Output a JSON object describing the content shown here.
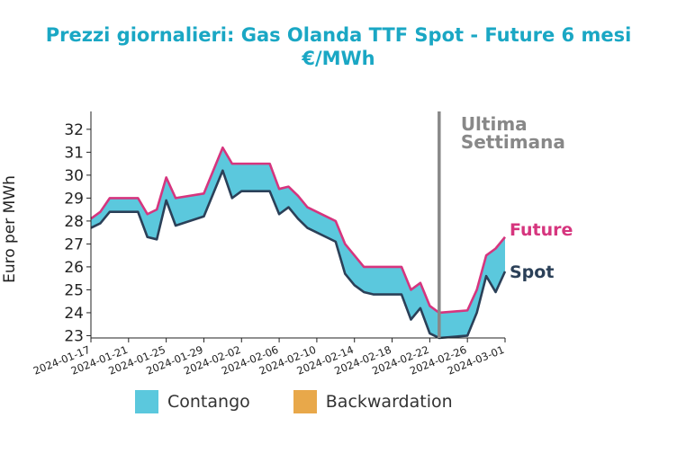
{
  "title_line1": "Prezzi giornalieri: Gas Olanda TTF Spot - Future 6 mesi",
  "title_line2": "€/MWh",
  "colors": {
    "contango": "#5bc8dd",
    "backwardation": "#e8a84a",
    "future": "#d6357e",
    "spot": "#2b4058",
    "marker": "#888888",
    "title": "#1aa7c4"
  },
  "legend": {
    "contango": "Contango",
    "backwardation": "Backwardation"
  },
  "chart_data": {
    "type": "area",
    "ylabel": "Euro per MWh",
    "xlabel": "",
    "ylim": [
      22.9,
      32.7
    ],
    "yticks": [
      23,
      24,
      25,
      26,
      27,
      28,
      29,
      30,
      31,
      32
    ],
    "xticks": [
      "2024-01-17",
      "2024-01-21",
      "2024-01-25",
      "2024-01-29",
      "2024-02-02",
      "2024-02-06",
      "2024-02-10",
      "2024-02-14",
      "2024-02-18",
      "2024-02-22",
      "2024-02-26",
      "2024-03-01"
    ],
    "x": [
      "2024-01-17",
      "2024-01-18",
      "2024-01-19",
      "2024-01-22",
      "2024-01-23",
      "2024-01-24",
      "2024-01-25",
      "2024-01-26",
      "2024-01-29",
      "2024-01-30",
      "2024-01-31",
      "2024-02-01",
      "2024-02-02",
      "2024-02-05",
      "2024-02-06",
      "2024-02-07",
      "2024-02-08",
      "2024-02-09",
      "2024-02-12",
      "2024-02-13",
      "2024-02-14",
      "2024-02-15",
      "2024-02-16",
      "2024-02-19",
      "2024-02-20",
      "2024-02-21",
      "2024-02-22",
      "2024-02-23",
      "2024-02-26",
      "2024-02-27",
      "2024-02-28",
      "2024-02-29",
      "2024-03-01"
    ],
    "series": [
      {
        "name": "Future",
        "values": [
          28.1,
          28.4,
          29.0,
          29.0,
          28.3,
          28.5,
          29.9,
          29.0,
          29.2,
          30.2,
          31.2,
          30.5,
          30.5,
          30.5,
          29.4,
          29.5,
          29.1,
          28.6,
          28.0,
          27.0,
          26.5,
          26.0,
          26.0,
          26.0,
          25.0,
          25.3,
          24.3,
          24.0,
          24.1,
          25.0,
          26.5,
          26.8,
          27.3
        ]
      },
      {
        "name": "Spot",
        "values": [
          27.7,
          27.9,
          28.4,
          28.4,
          27.3,
          27.2,
          28.9,
          27.8,
          28.2,
          29.2,
          30.2,
          29.0,
          29.3,
          29.3,
          28.3,
          28.6,
          28.1,
          27.7,
          27.1,
          25.7,
          25.2,
          24.9,
          24.8,
          24.8,
          23.7,
          24.2,
          23.1,
          22.9,
          23.0,
          24.0,
          25.6,
          24.9,
          25.8
        ]
      }
    ],
    "annotation": {
      "x": "2024-02-23",
      "label_line1": "Ultima",
      "label_line2": "Settimana"
    },
    "series_labels": {
      "future": "Future",
      "spot": "Spot"
    }
  }
}
